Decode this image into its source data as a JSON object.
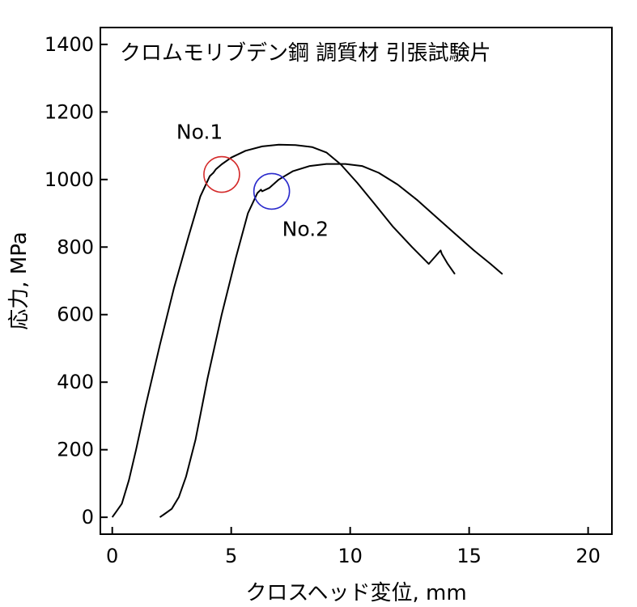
{
  "chart_data": {
    "type": "line",
    "title": "クロムモリブデン鋼 調質材 引張試験片",
    "xlabel": "クロスヘッド変位, mm",
    "ylabel": "応力, MPa",
    "xlim": [
      -0.5,
      21
    ],
    "ylim": [
      -50,
      1450
    ],
    "xticks": [
      0,
      5,
      10,
      15,
      20
    ],
    "yticks": [
      0,
      200,
      400,
      600,
      800,
      1000,
      1200,
      1400
    ],
    "xtick_labels": [
      "0",
      "5",
      "10",
      "15",
      "20"
    ],
    "ytick_labels": [
      "0",
      "200",
      "400",
      "600",
      "800",
      "1000",
      "1200",
      "1400"
    ],
    "grid": false,
    "legend": "none",
    "series": [
      {
        "name": "No.1",
        "color": "#000000",
        "x": [
          0.0,
          0.15,
          0.4,
          0.7,
          1.0,
          1.4,
          2.0,
          2.6,
          3.2,
          3.7,
          4.1,
          4.25,
          4.35,
          4.6,
          5.0,
          5.6,
          6.3,
          7.0,
          7.7,
          8.4,
          9.0,
          9.6,
          10.3,
          11.0,
          11.8,
          12.6,
          13.3,
          13.8,
          13.85,
          14.1,
          14.4
        ],
        "y": [
          0,
          15,
          40,
          110,
          200,
          330,
          510,
          680,
          830,
          950,
          1010,
          1020,
          1030,
          1045,
          1065,
          1085,
          1098,
          1103,
          1102,
          1096,
          1080,
          1045,
          990,
          930,
          860,
          800,
          750,
          790,
          780,
          750,
          720
        ]
      },
      {
        "name": "No.2",
        "color": "#000000",
        "x": [
          2.0,
          2.2,
          2.5,
          2.8,
          3.1,
          3.5,
          4.0,
          4.6,
          5.2,
          5.7,
          6.1,
          6.25,
          6.3,
          6.6,
          7.0,
          7.6,
          8.3,
          9.0,
          9.8,
          10.5,
          11.2,
          12.0,
          12.8,
          13.6,
          14.4,
          15.2,
          15.9,
          16.4
        ],
        "y": [
          0,
          10,
          25,
          60,
          120,
          230,
          410,
          600,
          770,
          900,
          960,
          970,
          965,
          975,
          1000,
          1025,
          1040,
          1046,
          1046,
          1040,
          1020,
          985,
          940,
          890,
          840,
          790,
          750,
          720
        ]
      }
    ],
    "annotations": [
      {
        "text": "No.1",
        "marker_x": 4.6,
        "marker_y": 1015,
        "marker_color": "#d42a2a"
      },
      {
        "text": "No.2",
        "marker_x": 6.7,
        "marker_y": 965,
        "marker_color": "#2a2acc"
      }
    ]
  }
}
